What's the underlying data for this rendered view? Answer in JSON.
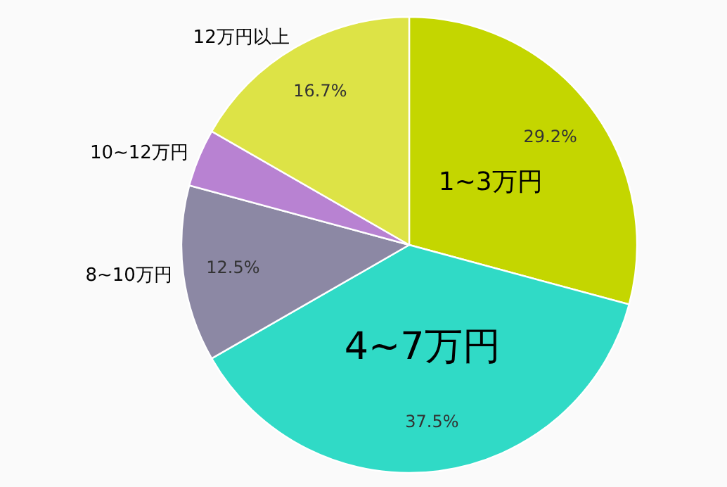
{
  "chart_data": {
    "type": "pie",
    "categories": [
      "1~3万円",
      "4~7万円",
      "8~10万円",
      "10~12万円",
      "12万円以上"
    ],
    "values": [
      29.2,
      37.5,
      12.5,
      4.1,
      16.7
    ],
    "colors": [
      "#c4d600",
      "#30dac6",
      "#8c88a4",
      "#b882d2",
      "#dde346"
    ],
    "value_labels": [
      "29.2%",
      "37.5%",
      "12.5%",
      null,
      "16.7%"
    ]
  }
}
